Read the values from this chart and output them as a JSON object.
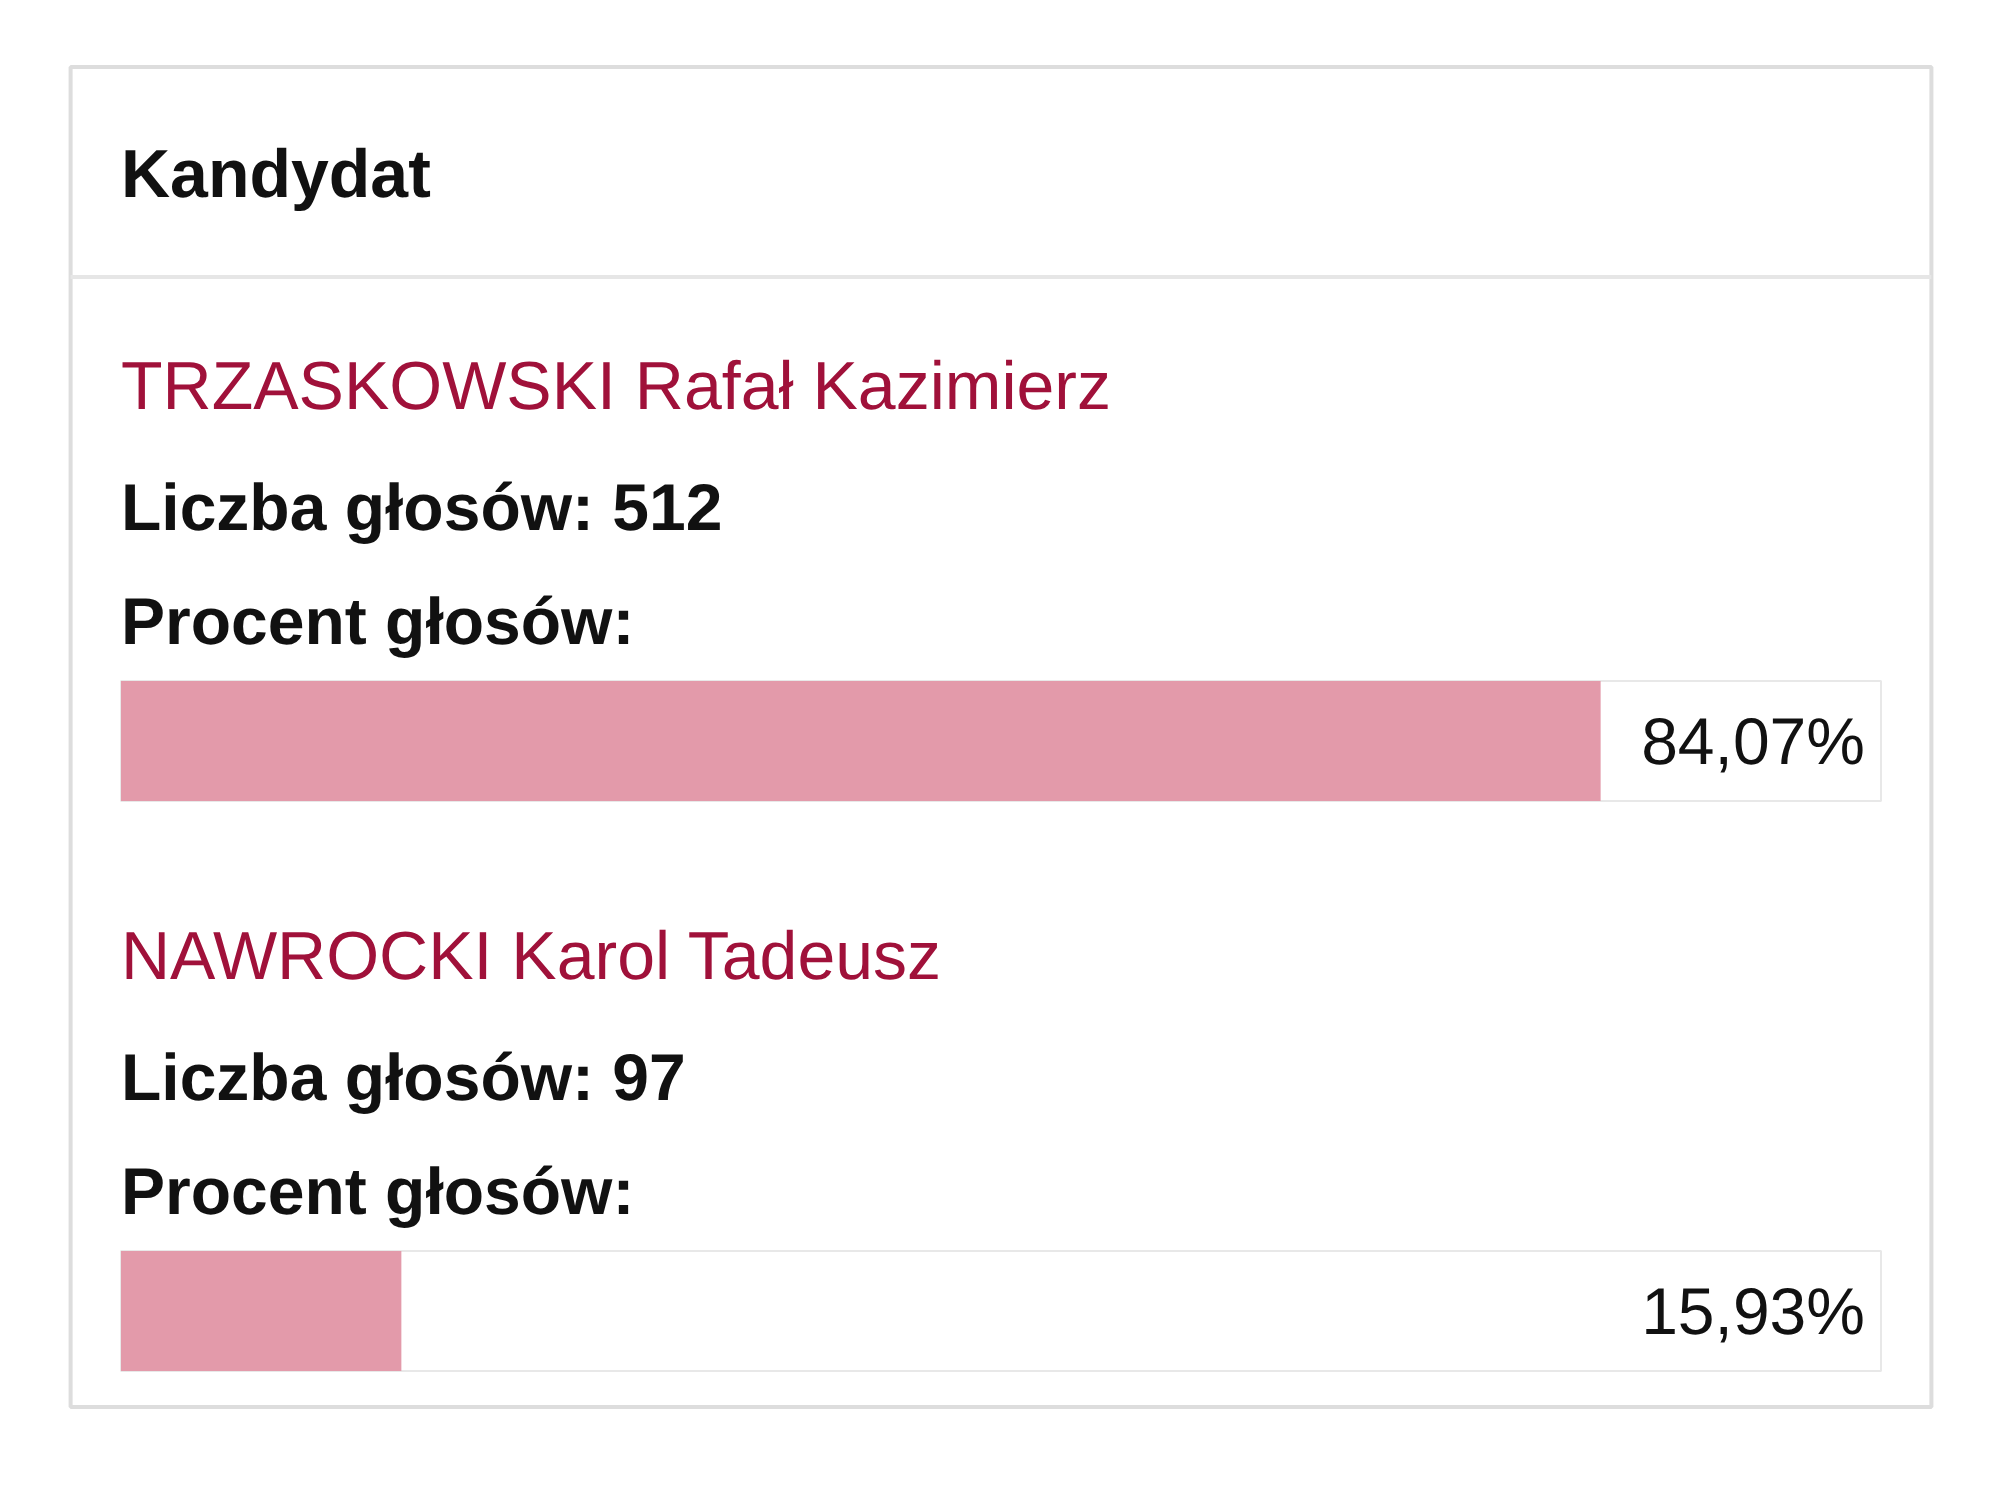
{
  "chart_data": {
    "type": "bar",
    "orientation": "horizontal",
    "title": "Kandydat",
    "categories": [
      "TRZASKOWSKI Rafał Kazimierz",
      "NAWROCKI Karol Tadeusz"
    ],
    "values": [
      84.07,
      15.93
    ],
    "value_labels": [
      "84,07%",
      "15,93%"
    ],
    "color": "#e39aaa",
    "xlim": [
      0,
      100
    ],
    "tick_labels": false,
    "grid": false,
    "annotations": [
      "Liczba głosów: 512",
      "Procent głosów:",
      "Liczba głosów: 97",
      "Procent głosów:"
    ]
  }
}
